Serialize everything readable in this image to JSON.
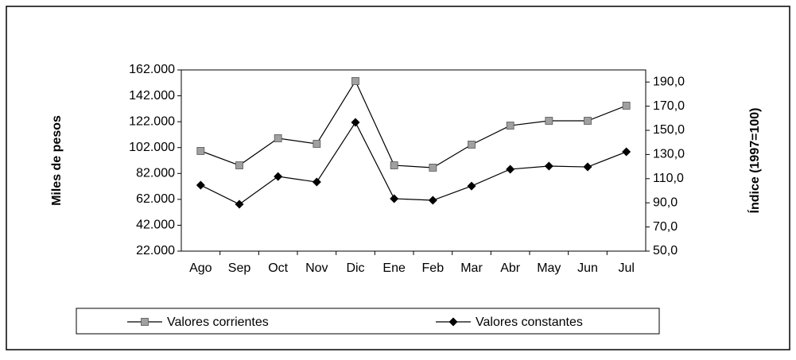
{
  "chart_data": {
    "type": "line",
    "categories": [
      "Ago",
      "Sep",
      "Oct",
      "Nov",
      "Dic",
      "Ene",
      "Feb",
      "Mar",
      "Abr",
      "May",
      "Jun",
      "Jul"
    ],
    "y_label": "Miles de pesos",
    "y2_label": "Índice (1997=100)",
    "ylim": [
      22000,
      162000
    ],
    "yticks": [
      {
        "value": 22000,
        "label": "22.000"
      },
      {
        "value": 42000,
        "label": "42.000"
      },
      {
        "value": 62000,
        "label": "62.000"
      },
      {
        "value": 82000,
        "label": "82.000"
      },
      {
        "value": 102000,
        "label": "102.000"
      },
      {
        "value": 122000,
        "label": "122.000"
      },
      {
        "value": 142000,
        "label": "142.000"
      },
      {
        "value": 162000,
        "label": "162.000"
      }
    ],
    "y2lim": [
      50,
      200
    ],
    "y2ticks": [
      {
        "value": 50,
        "label": "50,0"
      },
      {
        "value": 70,
        "label": "70,0"
      },
      {
        "value": 90,
        "label": "90,0"
      },
      {
        "value": 110,
        "label": "110,0"
      },
      {
        "value": 130,
        "label": "130,0"
      },
      {
        "value": 150,
        "label": "150,0"
      },
      {
        "value": 170,
        "label": "170,0"
      },
      {
        "value": 190,
        "label": "190,0"
      }
    ],
    "series": [
      {
        "name": "Valores corrientes",
        "color": "#a0a0a0",
        "marker": "square",
        "values": [
          99400,
          88300,
          109200,
          104900,
          153400,
          88300,
          86500,
          104300,
          119000,
          122700,
          122700,
          134400
        ]
      },
      {
        "name": "Valores constantes",
        "color": "#000000",
        "marker": "diamond",
        "axis": "y2",
        "values": [
          104.6,
          88.8,
          111.8,
          107.2,
          156.6,
          93.4,
          92.1,
          103.9,
          117.8,
          120.4,
          119.7,
          132.2
        ]
      }
    ]
  }
}
